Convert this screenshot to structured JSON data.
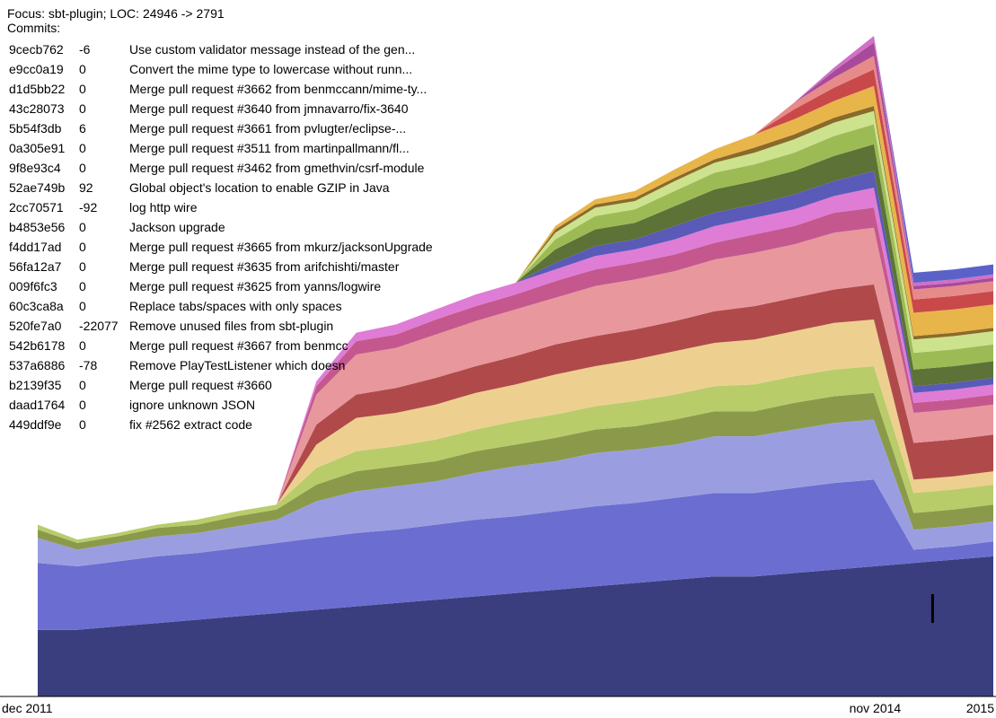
{
  "header": {
    "focus_line": "Focus: sbt-plugin; LOC: 24946 -> 2791",
    "commits_label": "Commits:"
  },
  "commits": [
    {
      "hash": "9cecb762",
      "delta": "-6",
      "message": "Use custom validator message instead of the gen..."
    },
    {
      "hash": "e9cc0a19",
      "delta": "0",
      "message": "Convert the mime type to lowercase without runn..."
    },
    {
      "hash": "d1d5bb22",
      "delta": "0",
      "message": "Merge pull request #3662 from benmccann/mime-ty..."
    },
    {
      "hash": "43c28073",
      "delta": "0",
      "message": "Merge pull request #3640 from jmnavarro/fix-3640"
    },
    {
      "hash": "5b54f3db",
      "delta": "6",
      "message": "Merge pull request #3661 from pvlugter/eclipse-..."
    },
    {
      "hash": "0a305e91",
      "delta": "0",
      "message": "Merge pull request #3511 from martinpallmann/fl..."
    },
    {
      "hash": "9f8e93c4",
      "delta": "0",
      "message": "Merge pull request #3462 from gmethvin/csrf-module"
    },
    {
      "hash": "52ae749b",
      "delta": "92",
      "message": "Global object's location to enable GZIP in Java"
    },
    {
      "hash": "2cc70571",
      "delta": "-92",
      "message": "log http wire"
    },
    {
      "hash": "b4853e56",
      "delta": "0",
      "message": "Jackson upgrade"
    },
    {
      "hash": "f4dd17ad",
      "delta": "0",
      "message": "Merge pull request #3665 from mkurz/jacksonUpgrade"
    },
    {
      "hash": "56fa12a7",
      "delta": "0",
      "message": "Merge pull request #3635 from arifchishti/master"
    },
    {
      "hash": "009f6fc3",
      "delta": "0",
      "message": "Merge pull request #3625 from yanns/logwire"
    },
    {
      "hash": "60c3ca8a",
      "delta": "0",
      "message": "Replace tabs/spaces with only spaces"
    },
    {
      "hash": "520fe7a0",
      "delta": "-22077",
      "message": "Remove unused files from sbt-plugin"
    },
    {
      "hash": "542b6178",
      "delta": "0",
      "message": "Merge pull request #3667 from benmcc"
    },
    {
      "hash": "537a6886",
      "delta": "-78",
      "message": "Remove PlayTestListener which doesn"
    },
    {
      "hash": "b2139f35",
      "delta": "0",
      "message": "Merge pull request #3660"
    },
    {
      "hash": "daad1764",
      "delta": "0",
      "message": "ignore unknown JSON"
    },
    {
      "hash": "449ddf9e",
      "delta": "0",
      "message": "fix #2562 extract code"
    }
  ],
  "chart_data": {
    "type": "area",
    "stacked": true,
    "x_labels": [
      "dec 2011",
      "nov 2014",
      "2015"
    ],
    "x_label_positions": [
      0.0,
      0.88,
      1.0
    ],
    "focus_marker_position": 0.9365,
    "series": [
      {
        "color": "#3a3e7e",
        "values": [
          40,
          40,
          42,
          44,
          46,
          48,
          50,
          52,
          54,
          56,
          58,
          60,
          62,
          64,
          66,
          68,
          70,
          72,
          72,
          74,
          76,
          78,
          80,
          82,
          84
        ]
      },
      {
        "color": "#6b6ed0",
        "values": [
          40,
          38,
          39,
          40,
          40,
          41,
          42,
          43,
          44,
          44,
          45,
          46,
          46,
          47,
          48,
          48,
          49,
          50,
          50,
          51,
          52,
          52,
          8,
          8,
          9
        ]
      },
      {
        "color": "#9a9ee0",
        "values": [
          15,
          10,
          11,
          12,
          12,
          13,
          14,
          22,
          25,
          26,
          26,
          28,
          30,
          30,
          32,
          32,
          32,
          34,
          34,
          35,
          36,
          36,
          12,
          12,
          12
        ]
      },
      {
        "color": "#8a9a4a",
        "values": [
          5,
          4,
          4,
          5,
          5,
          6,
          6,
          10,
          12,
          12,
          12,
          13,
          13,
          14,
          14,
          14,
          15,
          15,
          15,
          16,
          16,
          16,
          10,
          10,
          10
        ]
      },
      {
        "color": "#b8cc6a",
        "values": [
          3,
          2,
          2,
          2,
          3,
          3,
          3,
          10,
          12,
          12,
          13,
          13,
          14,
          14,
          14,
          15,
          15,
          15,
          16,
          16,
          16,
          16,
          12,
          12,
          12
        ]
      },
      {
        "color": "#edd090",
        "values": [
          0,
          0,
          0,
          0,
          0,
          0,
          0,
          14,
          20,
          20,
          21,
          22,
          22,
          24,
          24,
          25,
          26,
          26,
          27,
          27,
          28,
          28,
          8,
          8,
          8
        ]
      },
      {
        "color": "#b04a4a",
        "values": [
          0,
          0,
          0,
          0,
          0,
          0,
          0,
          12,
          14,
          15,
          16,
          16,
          17,
          18,
          18,
          18,
          18,
          19,
          20,
          20,
          20,
          21,
          22,
          22,
          22
        ]
      },
      {
        "color": "#e8989c",
        "values": [
          0,
          0,
          0,
          0,
          0,
          0,
          0,
          18,
          24,
          24,
          26,
          27,
          28,
          28,
          30,
          30,
          30,
          31,
          32,
          32,
          34,
          34,
          18,
          18,
          18
        ]
      },
      {
        "color": "#c4588e",
        "values": [
          0,
          0,
          0,
          0,
          0,
          0,
          0,
          5,
          8,
          8,
          9,
          9,
          9,
          10,
          10,
          10,
          10,
          10,
          11,
          11,
          12,
          12,
          6,
          6,
          6
        ]
      },
      {
        "color": "#de7cd6",
        "values": [
          0,
          0,
          0,
          0,
          0,
          0,
          0,
          3,
          5,
          6,
          6,
          7,
          7,
          7,
          8,
          8,
          9,
          10,
          10,
          10,
          10,
          12,
          6,
          6,
          6
        ]
      },
      {
        "color": "#5a5ab8",
        "values": [
          0,
          0,
          0,
          0,
          0,
          0,
          0,
          0,
          0,
          0,
          0,
          0,
          0,
          4,
          6,
          6,
          8,
          8,
          8,
          9,
          9,
          10,
          4,
          4,
          4
        ]
      },
      {
        "color": "#5d7236",
        "values": [
          0,
          0,
          0,
          0,
          0,
          0,
          0,
          0,
          0,
          0,
          0,
          0,
          0,
          8,
          10,
          10,
          12,
          14,
          14,
          14,
          15,
          16,
          10,
          10,
          10
        ]
      },
      {
        "color": "#9dbb55",
        "values": [
          0,
          0,
          0,
          0,
          0,
          0,
          0,
          0,
          0,
          0,
          0,
          0,
          0,
          6,
          8,
          8,
          9,
          10,
          10,
          11,
          12,
          12,
          10,
          10,
          10
        ]
      },
      {
        "color": "#cde28c",
        "values": [
          0,
          0,
          0,
          0,
          0,
          0,
          0,
          0,
          0,
          0,
          0,
          0,
          0,
          4,
          5,
          5,
          6,
          6,
          7,
          8,
          8,
          8,
          8,
          8,
          8
        ]
      },
      {
        "color": "#8a6a2a",
        "values": [
          0,
          0,
          0,
          0,
          0,
          0,
          0,
          0,
          0,
          0,
          0,
          0,
          0,
          2,
          2,
          2,
          2,
          2,
          3,
          3,
          3,
          3,
          2,
          2,
          2
        ]
      },
      {
        "color": "#e8b54a",
        "values": [
          0,
          0,
          0,
          0,
          0,
          0,
          0,
          0,
          0,
          0,
          0,
          0,
          0,
          2,
          3,
          4,
          5,
          6,
          8,
          9,
          10,
          12,
          14,
          14,
          14
        ]
      },
      {
        "color": "#c9494a",
        "values": [
          0,
          0,
          0,
          0,
          0,
          0,
          0,
          0,
          0,
          0,
          0,
          0,
          0,
          0,
          0,
          0,
          0,
          0,
          0,
          6,
          8,
          10,
          8,
          8,
          8
        ]
      },
      {
        "color": "#e78a8a",
        "values": [
          0,
          0,
          0,
          0,
          0,
          0,
          0,
          0,
          0,
          0,
          0,
          0,
          0,
          0,
          0,
          0,
          0,
          0,
          0,
          4,
          6,
          8,
          6,
          6,
          6
        ]
      },
      {
        "color": "#a84a9a",
        "values": [
          0,
          0,
          0,
          0,
          0,
          0,
          0,
          0,
          0,
          0,
          0,
          0,
          0,
          0,
          0,
          0,
          0,
          0,
          0,
          0,
          4,
          8,
          2,
          2,
          2
        ]
      },
      {
        "color": "#d070c8",
        "values": [
          0,
          0,
          0,
          0,
          0,
          0,
          0,
          0,
          0,
          0,
          0,
          0,
          0,
          0,
          0,
          0,
          0,
          0,
          0,
          0,
          2,
          4,
          2,
          2,
          2
        ]
      },
      {
        "color": "#5a62c8",
        "values": [
          0,
          0,
          0,
          0,
          0,
          0,
          0,
          0,
          0,
          0,
          0,
          0,
          0,
          0,
          0,
          0,
          0,
          0,
          0,
          0,
          0,
          0,
          6,
          6,
          6
        ]
      }
    ]
  }
}
